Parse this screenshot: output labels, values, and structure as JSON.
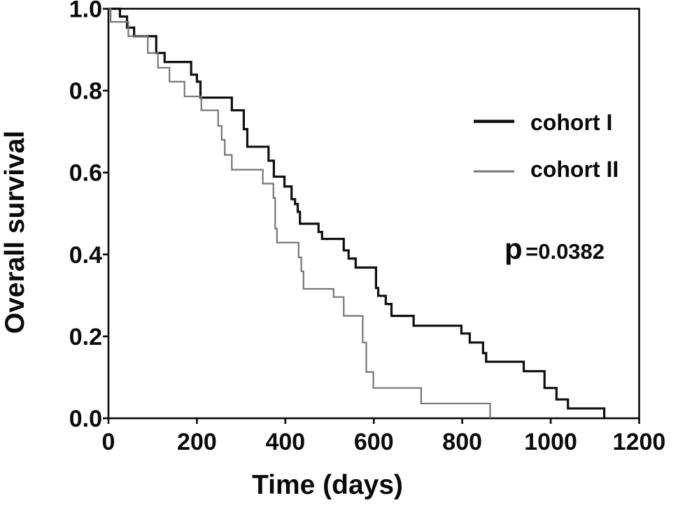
{
  "figure": {
    "y_axis_title": "Overall survival",
    "x_axis_title": "Time (days)",
    "annotation_prefix": "p",
    "annotation_rest": "=0.0382",
    "annotation_full": "p=0.0382"
  },
  "chart_data": {
    "type": "line",
    "subtype": "kaplan-meier-step-survival-curves",
    "title": "",
    "xlabel": "Time (days)",
    "ylabel": "Overall survival",
    "xlim": [
      0,
      1200
    ],
    "ylim": [
      0.0,
      1.0
    ],
    "x_ticks": [
      0,
      200,
      400,
      600,
      800,
      1000,
      1200
    ],
    "y_tick_values": [
      0.0,
      0.2,
      0.4,
      0.6,
      0.8,
      1.0
    ],
    "y_tick_labels": [
      "0.0",
      "0.2",
      "0.4",
      "0.6",
      "0.8",
      "1.0"
    ],
    "grid": false,
    "frame": "full-box",
    "legend_position": "upper-right-inside",
    "annotation": {
      "text": "p=0.0382"
    },
    "axis_color": "#0a0a0a",
    "series": [
      {
        "name": "cohort I",
        "color": "#0f0f0f",
        "stroke_width": 3.2,
        "points": [
          [
            0,
            1.0
          ],
          [
            26,
            0.981
          ],
          [
            42,
            0.954
          ],
          [
            58,
            0.933
          ],
          [
            108,
            0.892
          ],
          [
            127,
            0.87
          ],
          [
            187,
            0.839
          ],
          [
            200,
            0.822
          ],
          [
            208,
            0.783
          ],
          [
            279,
            0.752
          ],
          [
            306,
            0.706
          ],
          [
            314,
            0.663
          ],
          [
            362,
            0.629
          ],
          [
            374,
            0.59
          ],
          [
            398,
            0.566
          ],
          [
            414,
            0.535
          ],
          [
            422,
            0.523
          ],
          [
            428,
            0.504
          ],
          [
            433,
            0.475
          ],
          [
            475,
            0.455
          ],
          [
            483,
            0.438
          ],
          [
            532,
            0.41
          ],
          [
            543,
            0.39
          ],
          [
            559,
            0.368
          ],
          [
            605,
            0.318
          ],
          [
            610,
            0.299
          ],
          [
            627,
            0.279
          ],
          [
            640,
            0.25
          ],
          [
            690,
            0.226
          ],
          [
            798,
            0.207
          ],
          [
            817,
            0.185
          ],
          [
            847,
            0.159
          ],
          [
            854,
            0.138
          ],
          [
            939,
            0.115
          ],
          [
            986,
            0.074
          ],
          [
            1013,
            0.046
          ],
          [
            1039,
            0.024
          ],
          [
            1121,
            0.0
          ]
        ]
      },
      {
        "name": "cohort II",
        "color": "#757575",
        "stroke_width": 2.2,
        "points": [
          [
            0,
            1.0
          ],
          [
            5,
            0.968
          ],
          [
            45,
            0.933
          ],
          [
            89,
            0.892
          ],
          [
            112,
            0.856
          ],
          [
            138,
            0.822
          ],
          [
            172,
            0.786
          ],
          [
            210,
            0.752
          ],
          [
            248,
            0.714
          ],
          [
            256,
            0.68
          ],
          [
            263,
            0.643
          ],
          [
            279,
            0.607
          ],
          [
            349,
            0.573
          ],
          [
            373,
            0.538
          ],
          [
            377,
            0.463
          ],
          [
            381,
            0.429
          ],
          [
            430,
            0.393
          ],
          [
            436,
            0.359
          ],
          [
            441,
            0.316
          ],
          [
            509,
            0.296
          ],
          [
            532,
            0.25
          ],
          [
            575,
            0.185
          ],
          [
            583,
            0.113
          ],
          [
            599,
            0.074
          ],
          [
            707,
            0.036
          ],
          [
            863,
            0.0
          ]
        ]
      }
    ]
  }
}
